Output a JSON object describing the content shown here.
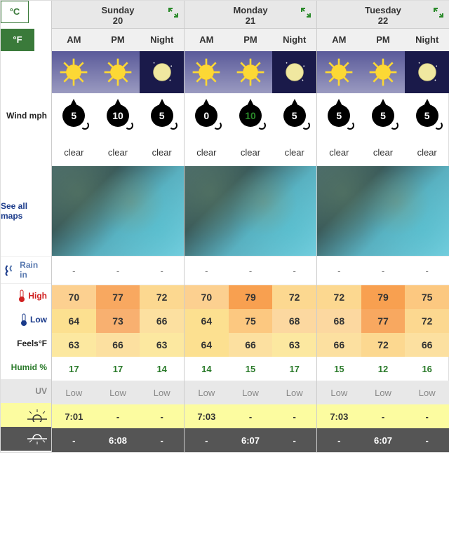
{
  "units": {
    "c": "°C",
    "f": "°F"
  },
  "labels": {
    "wind": "Wind mph",
    "maps": "See all maps",
    "rain": "Rain in",
    "high": "High",
    "low": "Low",
    "feels": "Feels°F",
    "humid": "Humid %",
    "uv": "UV"
  },
  "periods": [
    "AM",
    "PM",
    "Night"
  ],
  "days": [
    {
      "name": "Sunday",
      "date": "20",
      "icons": [
        "sun",
        "sun",
        "moon"
      ],
      "wind": [
        {
          "v": "5",
          "c": "w"
        },
        {
          "v": "10",
          "c": "w"
        },
        {
          "v": "5",
          "c": "w"
        }
      ],
      "cond": [
        "clear",
        "clear",
        "clear"
      ],
      "rain": [
        "-",
        "-",
        "-"
      ],
      "high": [
        {
          "v": "70",
          "t": "t-70"
        },
        {
          "v": "77",
          "t": "t-77"
        },
        {
          "v": "72",
          "t": "t-72"
        }
      ],
      "low": [
        {
          "v": "64",
          "t": "t-64"
        },
        {
          "v": "73",
          "t": "t-73"
        },
        {
          "v": "66",
          "t": "t-66"
        }
      ],
      "feels": [
        {
          "v": "63",
          "t": "t-63"
        },
        {
          "v": "66",
          "t": "t-66"
        },
        {
          "v": "63",
          "t": "t-63"
        }
      ],
      "humid": [
        "17",
        "17",
        "14"
      ],
      "uv": [
        "Low",
        "Low",
        "Low"
      ],
      "sunrise": [
        "7:01",
        "-",
        "-"
      ],
      "sunset": [
        "-",
        "6:08",
        "-"
      ]
    },
    {
      "name": "Monday",
      "date": "21",
      "icons": [
        "sun",
        "sun",
        "moon"
      ],
      "wind": [
        {
          "v": "0",
          "c": "w"
        },
        {
          "v": "10",
          "c": "g"
        },
        {
          "v": "5",
          "c": "w"
        }
      ],
      "cond": [
        "clear",
        "clear",
        "clear"
      ],
      "rain": [
        "-",
        "-",
        "-"
      ],
      "high": [
        {
          "v": "70",
          "t": "t-70"
        },
        {
          "v": "79",
          "t": "t-79"
        },
        {
          "v": "72",
          "t": "t-72"
        }
      ],
      "low": [
        {
          "v": "64",
          "t": "t-64"
        },
        {
          "v": "75",
          "t": "t-75"
        },
        {
          "v": "68",
          "t": "t-68"
        }
      ],
      "feels": [
        {
          "v": "64",
          "t": "t-64"
        },
        {
          "v": "66",
          "t": "t-66"
        },
        {
          "v": "63",
          "t": "t-63"
        }
      ],
      "humid": [
        "14",
        "15",
        "17"
      ],
      "uv": [
        "Low",
        "Low",
        "Low"
      ],
      "sunrise": [
        "7:03",
        "-",
        "-"
      ],
      "sunset": [
        "-",
        "6:07",
        "-"
      ]
    },
    {
      "name": "Tuesday",
      "date": "22",
      "icons": [
        "sun",
        "sun",
        "moon"
      ],
      "wind": [
        {
          "v": "5",
          "c": "w"
        },
        {
          "v": "5",
          "c": "w"
        },
        {
          "v": "5",
          "c": "w"
        }
      ],
      "cond": [
        "clear",
        "clear",
        "clear"
      ],
      "rain": [
        "-",
        "-",
        "-"
      ],
      "high": [
        {
          "v": "72",
          "t": "t-72"
        },
        {
          "v": "79",
          "t": "t-79"
        },
        {
          "v": "75",
          "t": "t-75"
        }
      ],
      "low": [
        {
          "v": "68",
          "t": "t-68"
        },
        {
          "v": "77",
          "t": "t-77"
        },
        {
          "v": "72",
          "t": "t-72"
        }
      ],
      "feels": [
        {
          "v": "66",
          "t": "t-66"
        },
        {
          "v": "72",
          "t": "t-72"
        },
        {
          "v": "66",
          "t": "t-66"
        }
      ],
      "humid": [
        "15",
        "12",
        "16"
      ],
      "uv": [
        "Low",
        "Low",
        "Low"
      ],
      "sunrise": [
        "7:03",
        "-",
        "-"
      ],
      "sunset": [
        "-",
        "6:07",
        "-"
      ]
    }
  ],
  "colors": {
    "accent_green": "#3a7a3a",
    "high_red": "#d02020",
    "low_blue": "#1a3a8a",
    "humid_green": "#2a7a2a"
  }
}
